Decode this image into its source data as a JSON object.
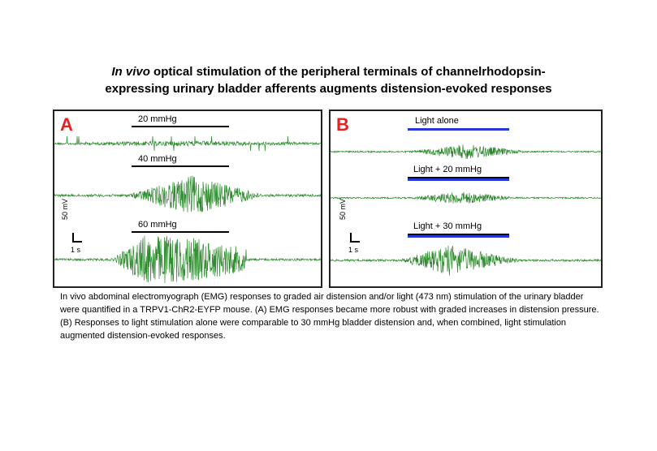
{
  "title": {
    "italic": "In vivo",
    "line1_rest": " optical stimulation of the peripheral terminals of channelrhodopsin-",
    "line2": "expressing urinary bladder afferents augments distension-evoked responses"
  },
  "panel_a": {
    "letter": "A",
    "traces": [
      {
        "label": "20 mmHg",
        "amplitude": 0.15
      },
      {
        "label": "40 mmHg",
        "amplitude": 0.75
      },
      {
        "label": "60 mmHg",
        "amplitude": 1.0
      }
    ],
    "scale": {
      "y": "50 mV",
      "x": "1 s"
    }
  },
  "panel_b": {
    "letter": "B",
    "traces": [
      {
        "label": "Light alone",
        "amplitude": 0.45
      },
      {
        "label": "Light + 20 mmHg",
        "amplitude": 0.4
      },
      {
        "label": "Light + 30 mmHg",
        "amplitude": 0.7
      }
    ],
    "scale": {
      "y": "50 mV",
      "x": "1 s"
    }
  },
  "colors": {
    "trace": "#2e8b2e",
    "letter": "#e32222",
    "light_bar": "#2538d6"
  },
  "caption": "In vivo abdominal electromyograph (EMG) responses to graded air distension and/or light (473 nm) stimulation of the urinary bladder were quantified in a TRPV1-ChR2-EYFP mouse.  (A) EMG responses became more robust with graded increases in distension pressure.  (B) Responses to light stimulation alone were comparable to 30 mmHg bladder distension and, when combined, light stimulation augmented distension-evoked responses."
}
